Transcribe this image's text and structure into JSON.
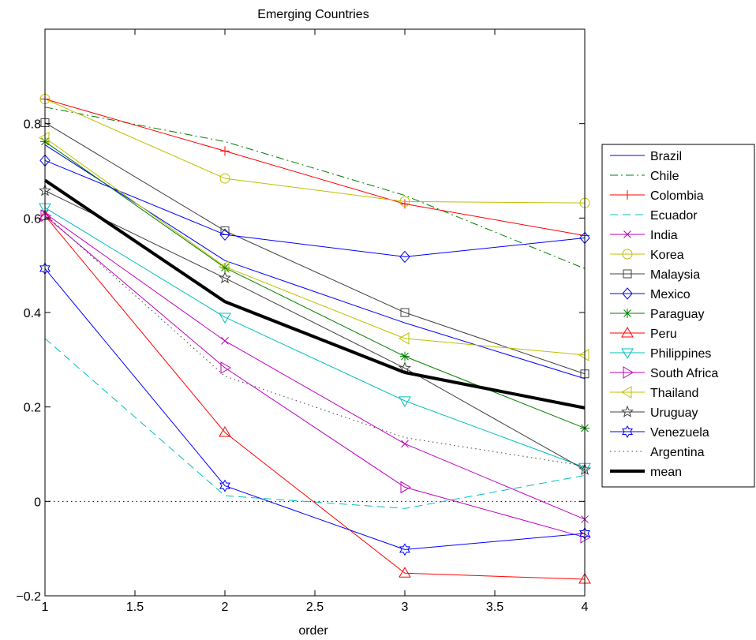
{
  "chart_data": {
    "type": "line",
    "title": "Emerging Countries",
    "xlabel": "order",
    "ylabel": "",
    "xlim": [
      1,
      4
    ],
    "ylim": [
      -0.2,
      1.0
    ],
    "xticks": [
      "1",
      "1.5",
      "2",
      "2.5",
      "3",
      "3.5",
      "4"
    ],
    "xtick_values": [
      1,
      1.5,
      2,
      2.5,
      3,
      3.5,
      4
    ],
    "yticks": [
      "−0.2",
      "0",
      "0.2",
      "0.4",
      "0.6",
      "0.8"
    ],
    "ytick_values": [
      -0.2,
      0,
      0.2,
      0.4,
      0.6,
      0.8
    ],
    "grid": false,
    "legend_position": "right",
    "x": [
      1,
      2,
      3,
      4
    ],
    "zero_line": 0,
    "series": [
      {
        "name": "Brazil",
        "values": [
          0.755,
          0.51,
          0.378,
          0.26
        ],
        "color": "#0000ff",
        "dash": "solid",
        "marker": "none",
        "width": 1
      },
      {
        "name": "Chile",
        "values": [
          0.835,
          0.762,
          0.648,
          0.493
        ],
        "color": "#008000",
        "dash": "dashdot",
        "marker": "none",
        "width": 1
      },
      {
        "name": "Colombia",
        "values": [
          0.852,
          0.742,
          0.63,
          0.563
        ],
        "color": "#ff0000",
        "dash": "solid",
        "marker": "plus",
        "width": 1
      },
      {
        "name": "Ecuador",
        "values": [
          0.345,
          0.012,
          -0.015,
          0.055
        ],
        "color": "#00bfbf",
        "dash": "dashed",
        "marker": "none",
        "width": 1
      },
      {
        "name": "India",
        "values": [
          0.61,
          0.34,
          0.122,
          -0.038
        ],
        "color": "#bf00bf",
        "dash": "solid",
        "marker": "x",
        "width": 1
      },
      {
        "name": "Korea",
        "values": [
          0.852,
          0.684,
          0.635,
          0.632
        ],
        "color": "#bfbf00",
        "dash": "solid",
        "marker": "circle",
        "width": 1
      },
      {
        "name": "Malaysia",
        "values": [
          0.802,
          0.573,
          0.4,
          0.27
        ],
        "color": "#404040",
        "dash": "solid",
        "marker": "square",
        "width": 1
      },
      {
        "name": "Mexico",
        "values": [
          0.722,
          0.565,
          0.518,
          0.558
        ],
        "color": "#0000ff",
        "dash": "solid",
        "marker": "diamond",
        "width": 1
      },
      {
        "name": "Paraguay",
        "values": [
          0.762,
          0.495,
          0.307,
          0.155
        ],
        "color": "#008000",
        "dash": "solid",
        "marker": "asterisk",
        "width": 1
      },
      {
        "name": "Peru",
        "values": [
          0.605,
          0.146,
          -0.152,
          -0.165
        ],
        "color": "#ff0000",
        "dash": "solid",
        "marker": "triangle-up",
        "width": 1
      },
      {
        "name": "Philippines",
        "values": [
          0.622,
          0.39,
          0.213,
          0.072
        ],
        "color": "#00bfbf",
        "dash": "solid",
        "marker": "triangle-down",
        "width": 1
      },
      {
        "name": "South Africa",
        "values": [
          0.605,
          0.283,
          0.03,
          -0.076
        ],
        "color": "#bf00bf",
        "dash": "solid",
        "marker": "triangle-right",
        "width": 1
      },
      {
        "name": "Thailand",
        "values": [
          0.77,
          0.497,
          0.345,
          0.31
        ],
        "color": "#bfbf00",
        "dash": "solid",
        "marker": "triangle-left",
        "width": 1
      },
      {
        "name": "Uruguay",
        "values": [
          0.658,
          0.473,
          0.282,
          0.067
        ],
        "color": "#404040",
        "dash": "solid",
        "marker": "pentagram",
        "width": 1
      },
      {
        "name": "Venezuela",
        "values": [
          0.493,
          0.033,
          -0.102,
          -0.068
        ],
        "color": "#0000ff",
        "dash": "solid",
        "marker": "hexagram",
        "width": 1
      },
      {
        "name": "Argentina",
        "values": [
          0.608,
          0.265,
          0.135,
          0.075
        ],
        "color": "#404040",
        "dash": "dotted",
        "marker": "none",
        "width": 1
      },
      {
        "name": "mean",
        "values": [
          0.68,
          0.423,
          0.273,
          0.198
        ],
        "color": "#000000",
        "dash": "solid",
        "marker": "none",
        "width": 4
      }
    ]
  }
}
